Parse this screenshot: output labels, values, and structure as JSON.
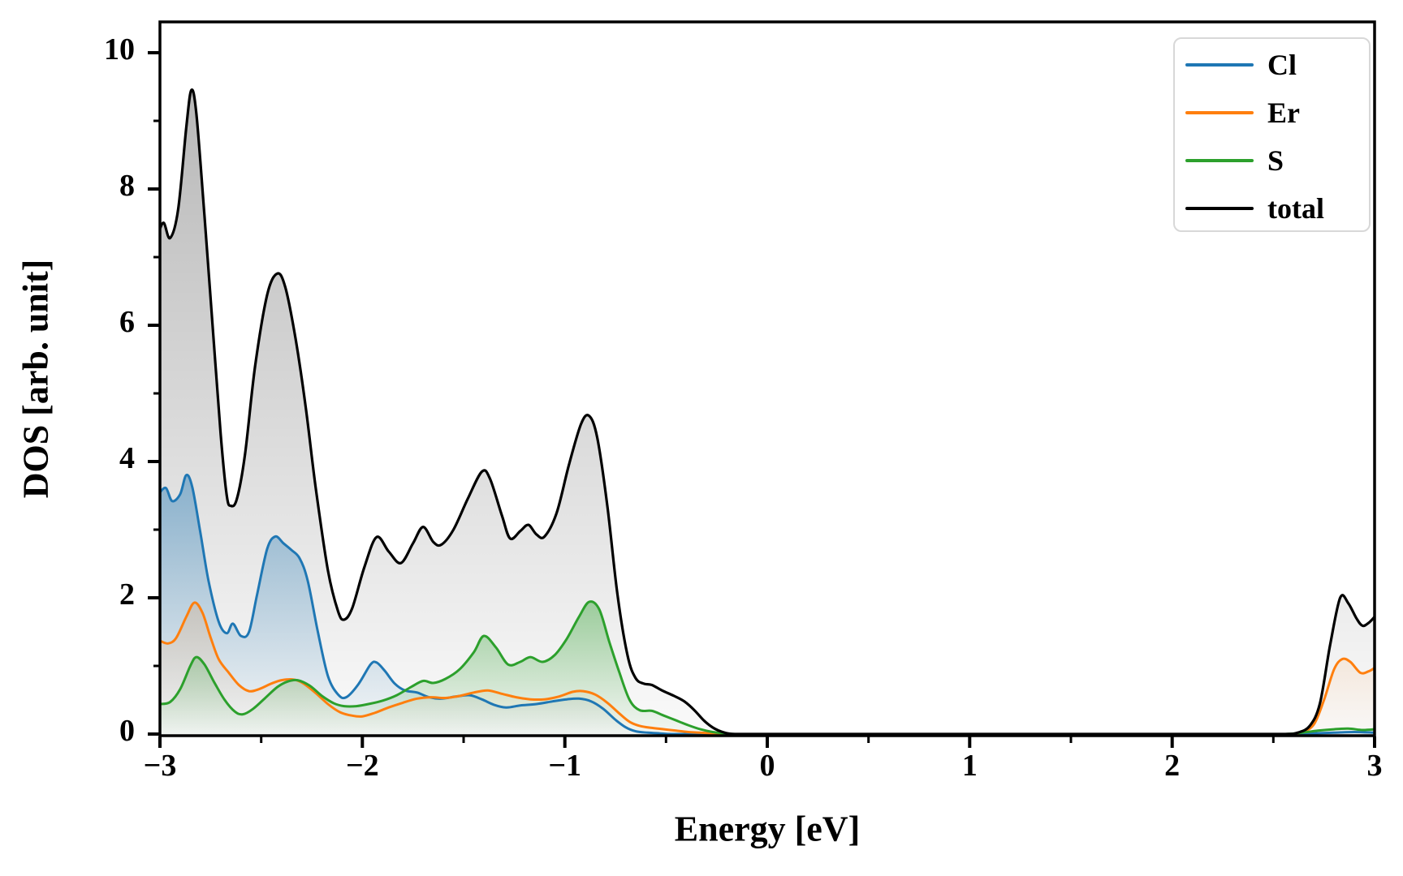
{
  "chart_data": {
    "type": "area",
    "title": "",
    "xlabel": "Energy [eV]",
    "ylabel": "DOS [arb. unit]",
    "axes": {
      "xlim": [
        -3,
        3
      ],
      "ylim": [
        0,
        10.45
      ],
      "xticks": [
        -3,
        -2,
        -1,
        0,
        1,
        2,
        3
      ],
      "xtick_labels": [
        "−3",
        "−2",
        "−1",
        "0",
        "1",
        "2",
        "3"
      ],
      "yticks": [
        0,
        2,
        4,
        6,
        8,
        10
      ],
      "ytick_labels": [
        "0",
        "2",
        "4",
        "6",
        "8",
        "10"
      ],
      "x_minor_ticks": [
        -2.5,
        -1.5,
        -0.5,
        0.5,
        1.5,
        2.5
      ],
      "y_minor_ticks": [
        1,
        3,
        5,
        7,
        9
      ],
      "grid": false
    },
    "legend": {
      "position": "upper right",
      "entries": [
        {
          "label": "Cl",
          "color": "#1f77b4"
        },
        {
          "label": "Er",
          "color": "#ff7f0e"
        },
        {
          "label": "S",
          "color": "#2ca02c"
        },
        {
          "label": "total",
          "color": "#000000"
        }
      ]
    },
    "series": [
      {
        "name": "Cl",
        "color": "#1f77b4",
        "line_width": 3,
        "fill_top_opacity": 0.45,
        "fill_bottom_opacity": 0.02,
        "points": [
          [
            -3,
            3.55
          ],
          [
            -2.97,
            3.61
          ],
          [
            -2.94,
            3.42
          ],
          [
            -2.9,
            3.52
          ],
          [
            -2.87,
            3.8
          ],
          [
            -2.84,
            3.62
          ],
          [
            -2.8,
            2.95
          ],
          [
            -2.76,
            2.25
          ],
          [
            -2.71,
            1.65
          ],
          [
            -2.67,
            1.48
          ],
          [
            -2.64,
            1.62
          ],
          [
            -2.6,
            1.44
          ],
          [
            -2.56,
            1.5
          ],
          [
            -2.52,
            2.05
          ],
          [
            -2.47,
            2.72
          ],
          [
            -2.43,
            2.9
          ],
          [
            -2.39,
            2.8
          ],
          [
            -2.35,
            2.7
          ],
          [
            -2.31,
            2.58
          ],
          [
            -2.27,
            2.25
          ],
          [
            -2.22,
            1.5
          ],
          [
            -2.17,
            0.85
          ],
          [
            -2.12,
            0.58
          ],
          [
            -2.08,
            0.54
          ],
          [
            -2.02,
            0.73
          ],
          [
            -1.96,
            1.02
          ],
          [
            -1.93,
            1.05
          ],
          [
            -1.89,
            0.93
          ],
          [
            -1.84,
            0.74
          ],
          [
            -1.79,
            0.64
          ],
          [
            -1.73,
            0.61
          ],
          [
            -1.67,
            0.54
          ],
          [
            -1.61,
            0.52
          ],
          [
            -1.54,
            0.55
          ],
          [
            -1.47,
            0.57
          ],
          [
            -1.41,
            0.51
          ],
          [
            -1.35,
            0.43
          ],
          [
            -1.29,
            0.39
          ],
          [
            -1.22,
            0.42
          ],
          [
            -1.14,
            0.44
          ],
          [
            -1.06,
            0.48
          ],
          [
            -0.99,
            0.51
          ],
          [
            -0.93,
            0.52
          ],
          [
            -0.87,
            0.48
          ],
          [
            -0.81,
            0.37
          ],
          [
            -0.75,
            0.21
          ],
          [
            -0.7,
            0.1
          ],
          [
            -0.65,
            0.04
          ],
          [
            -0.59,
            0.02
          ],
          [
            -0.53,
            0.01
          ],
          [
            -0.47,
            0
          ],
          [
            -0.3,
            0
          ],
          [
            0,
            0
          ],
          [
            0.5,
            0
          ],
          [
            1,
            0
          ],
          [
            1.5,
            0
          ],
          [
            2,
            0
          ],
          [
            2.4,
            0
          ],
          [
            2.6,
            0
          ],
          [
            2.7,
            0.01
          ],
          [
            2.8,
            0.02
          ],
          [
            2.9,
            0.03
          ],
          [
            3,
            0.02
          ]
        ]
      },
      {
        "name": "Er",
        "color": "#ff7f0e",
        "line_width": 3,
        "fill_top_opacity": 0.16,
        "fill_bottom_opacity": 0.01,
        "points": [
          [
            -3,
            1.37
          ],
          [
            -2.96,
            1.33
          ],
          [
            -2.92,
            1.41
          ],
          [
            -2.87,
            1.72
          ],
          [
            -2.83,
            1.93
          ],
          [
            -2.79,
            1.78
          ],
          [
            -2.75,
            1.42
          ],
          [
            -2.71,
            1.1
          ],
          [
            -2.66,
            0.9
          ],
          [
            -2.61,
            0.72
          ],
          [
            -2.56,
            0.63
          ],
          [
            -2.51,
            0.66
          ],
          [
            -2.45,
            0.74
          ],
          [
            -2.4,
            0.79
          ],
          [
            -2.34,
            0.8
          ],
          [
            -2.29,
            0.74
          ],
          [
            -2.23,
            0.6
          ],
          [
            -2.17,
            0.44
          ],
          [
            -2.11,
            0.32
          ],
          [
            -2.05,
            0.27
          ],
          [
            -2,
            0.26
          ],
          [
            -1.94,
            0.31
          ],
          [
            -1.87,
            0.39
          ],
          [
            -1.8,
            0.46
          ],
          [
            -1.73,
            0.52
          ],
          [
            -1.66,
            0.54
          ],
          [
            -1.59,
            0.53
          ],
          [
            -1.52,
            0.56
          ],
          [
            -1.45,
            0.61
          ],
          [
            -1.38,
            0.64
          ],
          [
            -1.31,
            0.59
          ],
          [
            -1.24,
            0.54
          ],
          [
            -1.17,
            0.51
          ],
          [
            -1.1,
            0.51
          ],
          [
            -1.03,
            0.55
          ],
          [
            -0.96,
            0.62
          ],
          [
            -0.91,
            0.63
          ],
          [
            -0.85,
            0.58
          ],
          [
            -0.79,
            0.46
          ],
          [
            -0.73,
            0.3
          ],
          [
            -0.68,
            0.18
          ],
          [
            -0.63,
            0.12
          ],
          [
            -0.57,
            0.09
          ],
          [
            -0.51,
            0.07
          ],
          [
            -0.45,
            0.05
          ],
          [
            -0.39,
            0.03
          ],
          [
            -0.33,
            0.02
          ],
          [
            -0.27,
            0.01
          ],
          [
            -0.21,
            0
          ],
          [
            0,
            0
          ],
          [
            0.5,
            0
          ],
          [
            1,
            0
          ],
          [
            1.5,
            0
          ],
          [
            2,
            0
          ],
          [
            2.4,
            0
          ],
          [
            2.58,
            0
          ],
          [
            2.64,
            0.03
          ],
          [
            2.7,
            0.14
          ],
          [
            2.75,
            0.5
          ],
          [
            2.8,
            0.95
          ],
          [
            2.84,
            1.1
          ],
          [
            2.88,
            1.06
          ],
          [
            2.93,
            0.9
          ],
          [
            2.97,
            0.92
          ],
          [
            3,
            0.97
          ]
        ]
      },
      {
        "name": "S",
        "color": "#2ca02c",
        "line_width": 3,
        "fill_top_opacity": 0.42,
        "fill_bottom_opacity": 0.03,
        "points": [
          [
            -3,
            0.44
          ],
          [
            -2.95,
            0.47
          ],
          [
            -2.9,
            0.66
          ],
          [
            -2.85,
            1
          ],
          [
            -2.82,
            1.13
          ],
          [
            -2.78,
            1.02
          ],
          [
            -2.73,
            0.75
          ],
          [
            -2.68,
            0.5
          ],
          [
            -2.63,
            0.33
          ],
          [
            -2.59,
            0.29
          ],
          [
            -2.54,
            0.37
          ],
          [
            -2.48,
            0.53
          ],
          [
            -2.42,
            0.69
          ],
          [
            -2.37,
            0.77
          ],
          [
            -2.32,
            0.79
          ],
          [
            -2.26,
            0.71
          ],
          [
            -2.2,
            0.56
          ],
          [
            -2.14,
            0.45
          ],
          [
            -2.09,
            0.41
          ],
          [
            -2.03,
            0.41
          ],
          [
            -1.97,
            0.44
          ],
          [
            -1.9,
            0.49
          ],
          [
            -1.83,
            0.57
          ],
          [
            -1.76,
            0.69
          ],
          [
            -1.7,
            0.78
          ],
          [
            -1.65,
            0.75
          ],
          [
            -1.59,
            0.81
          ],
          [
            -1.52,
            0.95
          ],
          [
            -1.45,
            1.2
          ],
          [
            -1.4,
            1.44
          ],
          [
            -1.34,
            1.27
          ],
          [
            -1.28,
            1.02
          ],
          [
            -1.22,
            1.06
          ],
          [
            -1.17,
            1.13
          ],
          [
            -1.11,
            1.06
          ],
          [
            -1.05,
            1.16
          ],
          [
            -0.99,
            1.4
          ],
          [
            -0.93,
            1.72
          ],
          [
            -0.88,
            1.94
          ],
          [
            -0.83,
            1.83
          ],
          [
            -0.78,
            1.35
          ],
          [
            -0.73,
            0.9
          ],
          [
            -0.68,
            0.5
          ],
          [
            -0.63,
            0.35
          ],
          [
            -0.57,
            0.34
          ],
          [
            -0.51,
            0.27
          ],
          [
            -0.45,
            0.2
          ],
          [
            -0.39,
            0.13
          ],
          [
            -0.33,
            0.07
          ],
          [
            -0.27,
            0.03
          ],
          [
            -0.21,
            0.01
          ],
          [
            -0.16,
            0
          ],
          [
            0,
            0
          ],
          [
            0.5,
            0
          ],
          [
            1,
            0
          ],
          [
            1.5,
            0
          ],
          [
            2,
            0
          ],
          [
            2.4,
            0
          ],
          [
            2.56,
            0
          ],
          [
            2.64,
            0.02
          ],
          [
            2.72,
            0.05
          ],
          [
            2.8,
            0.07
          ],
          [
            2.87,
            0.08
          ],
          [
            2.94,
            0.06
          ],
          [
            3,
            0.07
          ]
        ]
      },
      {
        "name": "total",
        "color": "#000000",
        "line_width": 3.2,
        "fill_top_opacity": 0.28,
        "fill_bottom_opacity": 0.02,
        "points": [
          [
            -3,
            7.42
          ],
          [
            -2.98,
            7.5
          ],
          [
            -2.95,
            7.28
          ],
          [
            -2.91,
            7.7
          ],
          [
            -2.87,
            8.9
          ],
          [
            -2.845,
            9.45
          ],
          [
            -2.82,
            9.1
          ],
          [
            -2.78,
            7.6
          ],
          [
            -2.74,
            6
          ],
          [
            -2.7,
            4.4
          ],
          [
            -2.67,
            3.5
          ],
          [
            -2.65,
            3.35
          ],
          [
            -2.62,
            3.45
          ],
          [
            -2.58,
            4.1
          ],
          [
            -2.53,
            5.4
          ],
          [
            -2.47,
            6.45
          ],
          [
            -2.42,
            6.76
          ],
          [
            -2.38,
            6.55
          ],
          [
            -2.33,
            5.8
          ],
          [
            -2.28,
            4.8
          ],
          [
            -2.23,
            3.6
          ],
          [
            -2.17,
            2.4
          ],
          [
            -2.12,
            1.8
          ],
          [
            -2.09,
            1.68
          ],
          [
            -2.05,
            1.85
          ],
          [
            -1.99,
            2.45
          ],
          [
            -1.93,
            2.89
          ],
          [
            -1.87,
            2.68
          ],
          [
            -1.81,
            2.51
          ],
          [
            -1.75,
            2.8
          ],
          [
            -1.7,
            3.04
          ],
          [
            -1.65,
            2.82
          ],
          [
            -1.61,
            2.78
          ],
          [
            -1.55,
            3
          ],
          [
            -1.48,
            3.45
          ],
          [
            -1.41,
            3.85
          ],
          [
            -1.37,
            3.75
          ],
          [
            -1.31,
            3.2
          ],
          [
            -1.27,
            2.87
          ],
          [
            -1.22,
            2.98
          ],
          [
            -1.18,
            3.07
          ],
          [
            -1.14,
            2.93
          ],
          [
            -1.1,
            2.9
          ],
          [
            -1.04,
            3.25
          ],
          [
            -0.98,
            3.95
          ],
          [
            -0.92,
            4.55
          ],
          [
            -0.88,
            4.67
          ],
          [
            -0.84,
            4.35
          ],
          [
            -0.79,
            3.35
          ],
          [
            -0.74,
            2.05
          ],
          [
            -0.69,
            1.15
          ],
          [
            -0.65,
            0.82
          ],
          [
            -0.61,
            0.74
          ],
          [
            -0.57,
            0.72
          ],
          [
            -0.52,
            0.64
          ],
          [
            -0.46,
            0.56
          ],
          [
            -0.41,
            0.48
          ],
          [
            -0.36,
            0.35
          ],
          [
            -0.31,
            0.19
          ],
          [
            -0.26,
            0.08
          ],
          [
            -0.21,
            0.02
          ],
          [
            -0.16,
            0
          ],
          [
            0,
            0
          ],
          [
            0.5,
            0
          ],
          [
            1,
            0
          ],
          [
            1.5,
            0
          ],
          [
            2,
            0
          ],
          [
            2.4,
            0
          ],
          [
            2.56,
            0
          ],
          [
            2.62,
            0.02
          ],
          [
            2.68,
            0.12
          ],
          [
            2.73,
            0.45
          ],
          [
            2.78,
            1.3
          ],
          [
            2.83,
            2
          ],
          [
            2.87,
            1.92
          ],
          [
            2.91,
            1.7
          ],
          [
            2.94,
            1.59
          ],
          [
            2.97,
            1.63
          ],
          [
            3,
            1.72
          ]
        ]
      }
    ]
  }
}
